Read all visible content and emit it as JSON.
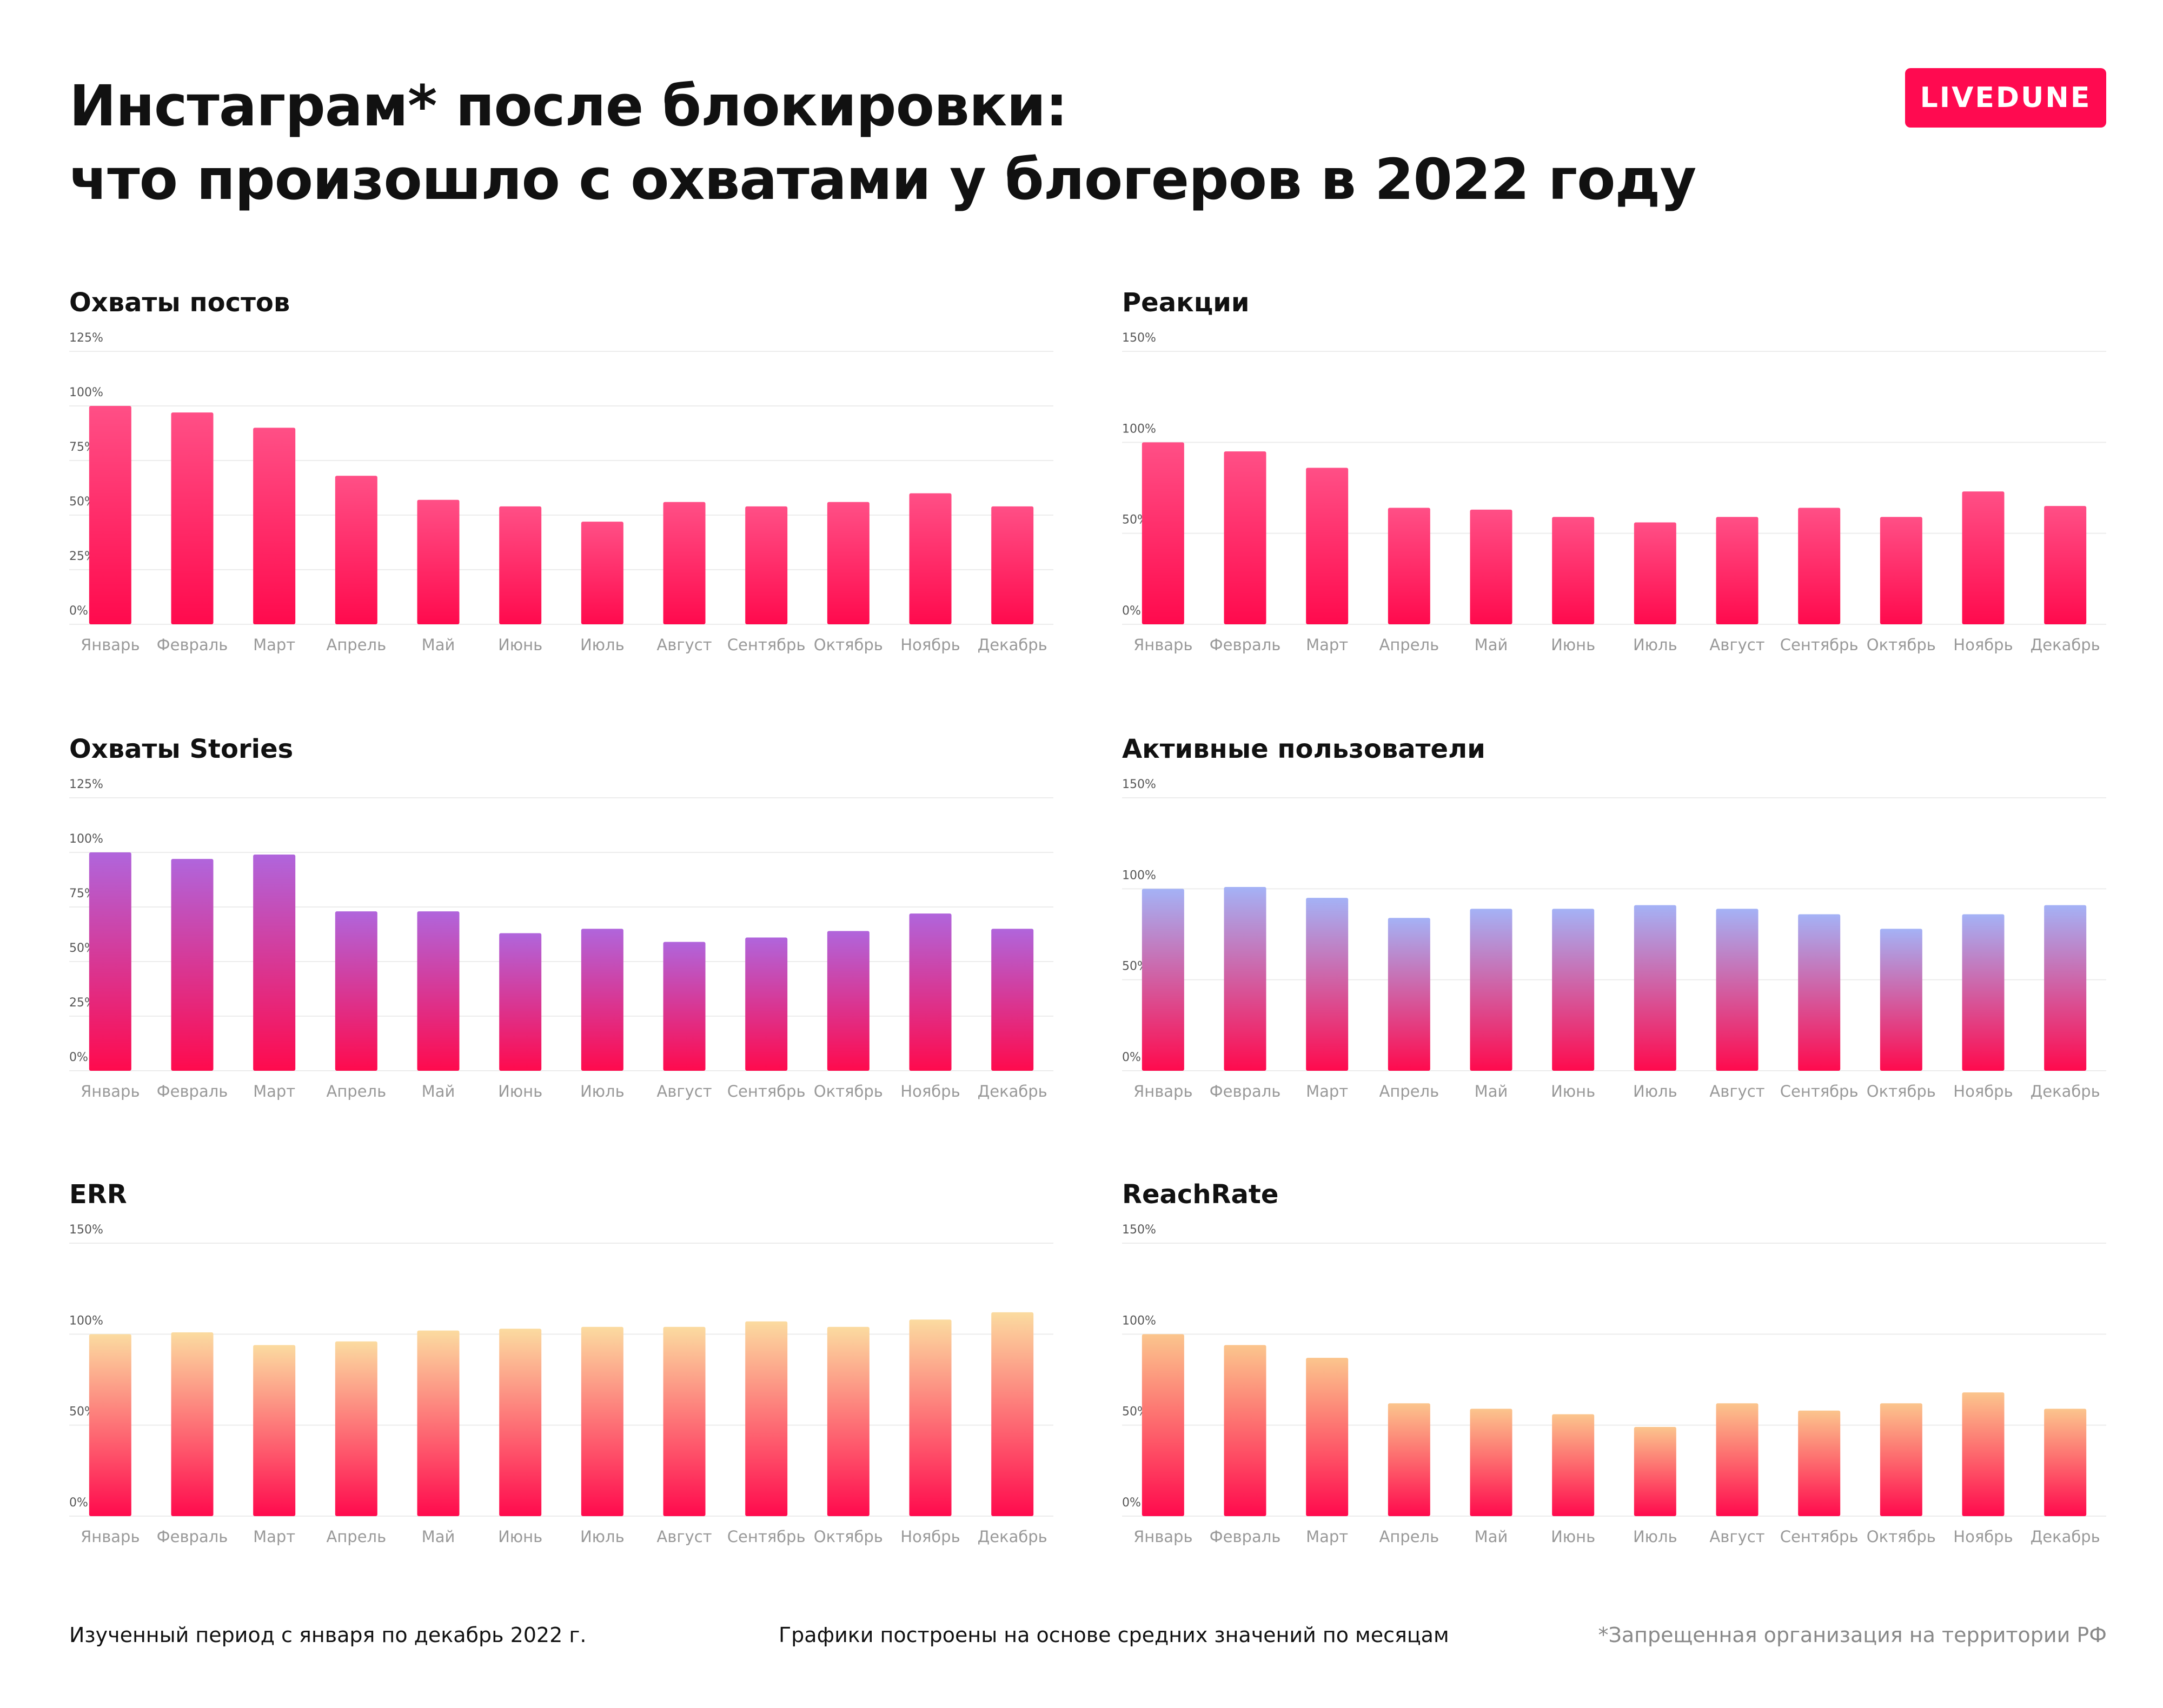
{
  "header": {
    "title_line1": "Инстаграм* после блокировки:",
    "title_line2": "что произошло с охватами у блогеров в 2022 году",
    "logo": "LIVEDUNE"
  },
  "footer": {
    "period": "Изученный период с января по декабрь 2022 г.",
    "basis": "Графики построены на основе средних значений по месяцам",
    "disclaimer": "*Запрещенная организация на территории РФ"
  },
  "chart_data": [
    {
      "id": "post-reach",
      "type": "bar",
      "title": "Охваты постов",
      "categories": [
        "Январь",
        "Февраль",
        "Март",
        "Апрель",
        "Май",
        "Июнь",
        "Июль",
        "Август",
        "Сентябрь",
        "Октябрь",
        "Ноябрь",
        "Декабрь"
      ],
      "values": [
        100,
        97,
        90,
        68,
        57,
        54,
        47,
        56,
        54,
        56,
        60,
        54
      ],
      "ylim": [
        0,
        125
      ],
      "ticks": [
        0,
        25,
        50,
        75,
        100,
        125
      ],
      "tick_labels": [
        "0%",
        "25%",
        "50%",
        "75%",
        "100%",
        "125%"
      ],
      "gradient": {
        "top": "#ff4f86",
        "bottom": "#ff0a4d"
      }
    },
    {
      "id": "reactions",
      "type": "bar",
      "title": "Реакции",
      "categories": [
        "Январь",
        "Февраль",
        "Март",
        "Апрель",
        "Май",
        "Июнь",
        "Июль",
        "Август",
        "Сентябрь",
        "Октябрь",
        "Ноябрь",
        "Декабрь"
      ],
      "values": [
        100,
        95,
        86,
        64,
        63,
        59,
        56,
        59,
        64,
        59,
        73,
        65
      ],
      "ylim": [
        0,
        150
      ],
      "ticks": [
        0,
        50,
        100,
        150
      ],
      "tick_labels": [
        "0%",
        "50%",
        "100%",
        "150%"
      ],
      "gradient": {
        "top": "#ff4f86",
        "bottom": "#ff0a4d"
      }
    },
    {
      "id": "stories-reach",
      "type": "bar",
      "title": "Охваты Stories",
      "categories": [
        "Январь",
        "Февраль",
        "Март",
        "Апрель",
        "Май",
        "Июнь",
        "Июль",
        "Август",
        "Сентябрь",
        "Октябрь",
        "Ноябрь",
        "Декабрь"
      ],
      "values": [
        100,
        97,
        99,
        73,
        73,
        63,
        65,
        59,
        61,
        64,
        72,
        65
      ],
      "ylim": [
        0,
        125
      ],
      "ticks": [
        0,
        25,
        50,
        75,
        100,
        125
      ],
      "tick_labels": [
        "0%",
        "25%",
        "50%",
        "75%",
        "100%",
        "125%"
      ],
      "gradient": {
        "top": "#b065dc",
        "bottom": "#ff0a4d"
      }
    },
    {
      "id": "active-users",
      "type": "bar",
      "title": "Активные пользователи",
      "categories": [
        "Январь",
        "Февраль",
        "Март",
        "Апрель",
        "Май",
        "Июнь",
        "Июль",
        "Август",
        "Сентябрь",
        "Октябрь",
        "Ноябрь",
        "Декабрь"
      ],
      "values": [
        100,
        101,
        95,
        84,
        89,
        89,
        91,
        89,
        86,
        78,
        86,
        91
      ],
      "ylim": [
        0,
        150
      ],
      "ticks": [
        0,
        50,
        100,
        150
      ],
      "tick_labels": [
        "0%",
        "50%",
        "100%",
        "150%"
      ],
      "gradient": {
        "top": "#a4b2f6",
        "bottom": "#ff0a4d"
      }
    },
    {
      "id": "err",
      "type": "bar",
      "title": "ERR",
      "categories": [
        "Январь",
        "Февраль",
        "Март",
        "Апрель",
        "Май",
        "Июнь",
        "Июль",
        "Август",
        "Сентябрь",
        "Октябрь",
        "Ноябрь",
        "Декабрь"
      ],
      "values": [
        100,
        101,
        94,
        96,
        102,
        103,
        104,
        104,
        107,
        104,
        108,
        112
      ],
      "ylim": [
        0,
        150
      ],
      "ticks": [
        0,
        50,
        100,
        150
      ],
      "tick_labels": [
        "0%",
        "50%",
        "100%",
        "150%"
      ],
      "gradient": {
        "top": "#fbdba0",
        "bottom": "#ff0a4d"
      }
    },
    {
      "id": "reach-rate",
      "type": "bar",
      "title": "ReachRate",
      "categories": [
        "Январь",
        "Февраль",
        "Март",
        "Апрель",
        "Май",
        "Июнь",
        "Июль",
        "Август",
        "Сентябрь",
        "Октябрь",
        "Ноябрь",
        "Декабрь"
      ],
      "values": [
        100,
        94,
        87,
        62,
        59,
        56,
        49,
        62,
        58,
        62,
        68,
        59
      ],
      "ylim": [
        0,
        150
      ],
      "ticks": [
        0,
        50,
        100,
        150
      ],
      "tick_labels": [
        "0%",
        "50%",
        "100%",
        "150%"
      ],
      "gradient": {
        "top": "#fbc58d",
        "bottom": "#ff0a4d"
      }
    }
  ]
}
